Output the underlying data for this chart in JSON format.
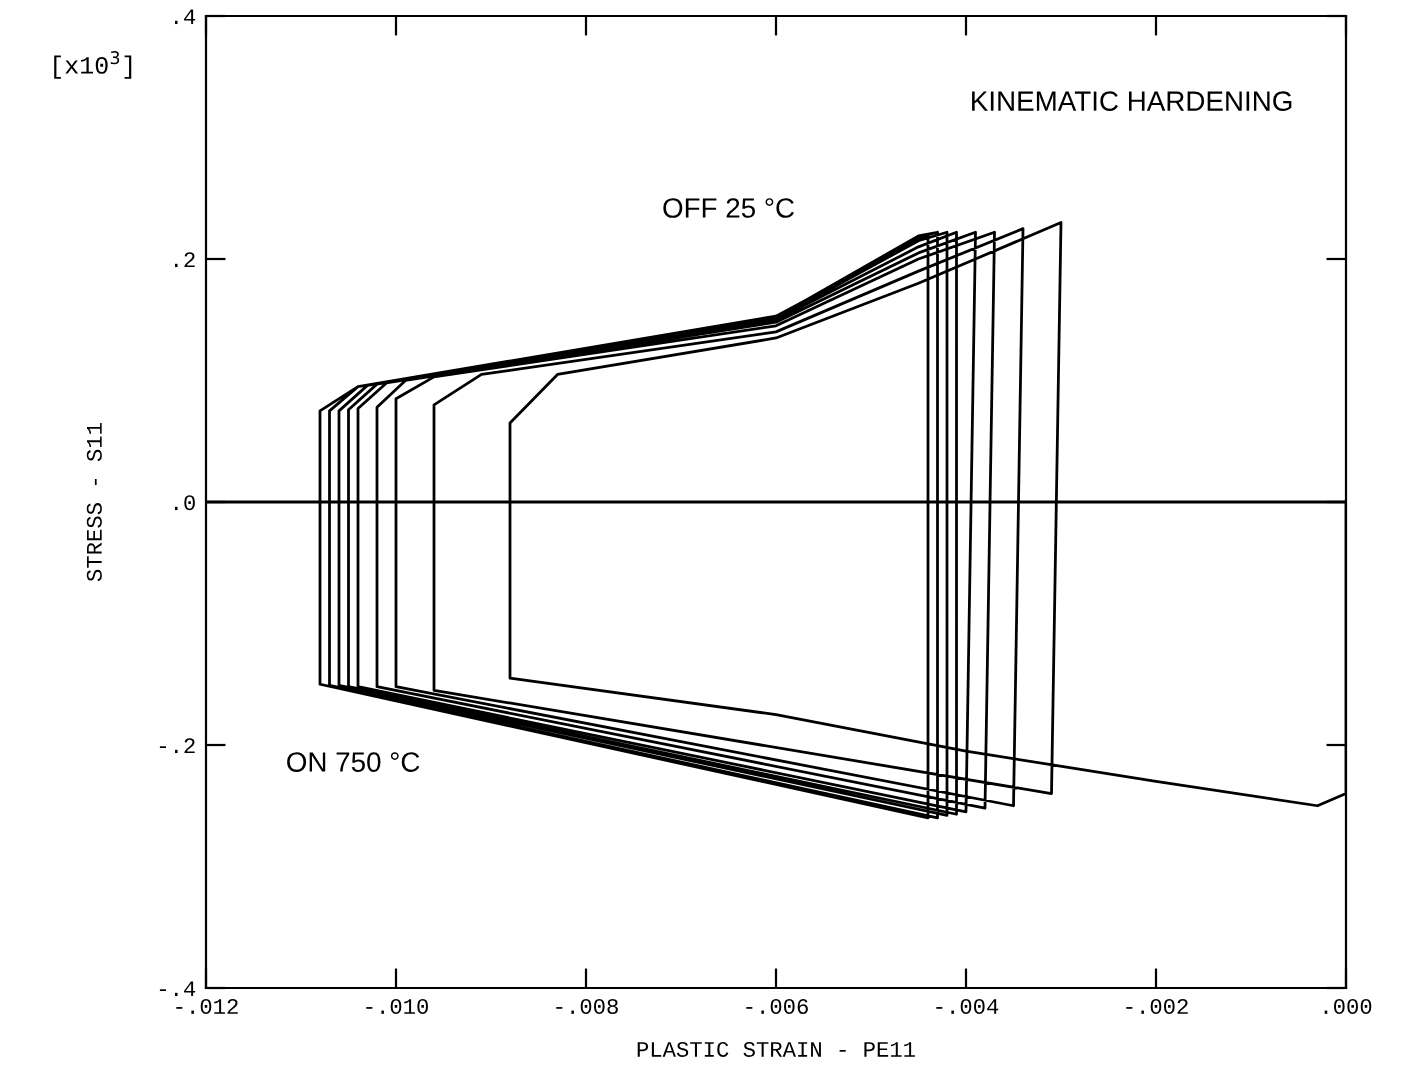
{
  "chart_data": {
    "type": "line",
    "xlabel": "PLASTIC STRAIN - PE11",
    "ylabel": "STRESS - S11",
    "annotations": [
      "[x10$^{3}$]",
      "KINEMATIC HARDENING",
      "OFF 25 °C",
      "ON 750 °C"
    ],
    "xlim": [
      -0.012,
      0.0
    ],
    "ylim": [
      -0.4,
      0.4
    ],
    "xticks": [
      {
        "value": -0.012,
        "label": "-.012"
      },
      {
        "value": -0.01,
        "label": "-.010"
      },
      {
        "value": -0.008,
        "label": "-.008"
      },
      {
        "value": -0.006,
        "label": "-.006"
      },
      {
        "value": -0.004,
        "label": "-.004"
      },
      {
        "value": -0.002,
        "label": "-.002"
      },
      {
        "value": 0.0,
        "label": ".000"
      }
    ],
    "yticks": [
      {
        "value": -0.4,
        "label": "-.4"
      },
      {
        "value": -0.2,
        "label": "-.2"
      },
      {
        "value": 0.0,
        "label": ".0"
      },
      {
        "value": 0.2,
        "label": ".2"
      },
      {
        "value": 0.4,
        "label": ".4"
      }
    ],
    "grid": false,
    "marker": "none",
    "line_style": "solid",
    "ref_lines": [
      {
        "axis": "y",
        "value": 0.0,
        "color": "#000000"
      }
    ],
    "series": [
      {
        "color": "#000000",
        "x": [
          0.0,
          0.0,
          -0.0003,
          -0.002,
          -0.004,
          -0.006,
          -0.0088,
          -0.0088,
          -0.0083,
          -0.006,
          -0.0045,
          -0.003,
          -0.0031,
          -0.0096,
          -0.0096,
          -0.0091,
          -0.006,
          -0.0045,
          -0.0034,
          -0.0035,
          -0.01,
          -0.01,
          -0.0096,
          -0.006,
          -0.0045,
          -0.0037,
          -0.0038,
          -0.0102,
          -0.0102,
          -0.0099,
          -0.006,
          -0.0045,
          -0.0039,
          -0.004,
          -0.0104,
          -0.0104,
          -0.0101,
          -0.006,
          -0.0045,
          -0.0041,
          -0.0041,
          -0.0105,
          -0.0105,
          -0.0102,
          -0.006,
          -0.0045,
          -0.0042,
          -0.0042,
          -0.0106,
          -0.0106,
          -0.0103,
          -0.006,
          -0.0045,
          -0.0043,
          -0.0043,
          -0.0107,
          -0.0107,
          -0.0104,
          -0.006,
          -0.0045,
          -0.0043,
          -0.0043,
          -0.0108,
          -0.0108,
          -0.0104,
          -0.006,
          -0.0044,
          -0.0044,
          -0.0108,
          -0.0108
        ],
        "values": [
          0.0,
          -0.24,
          -0.25,
          -0.23,
          -0.205,
          -0.175,
          -0.145,
          0.065,
          0.105,
          0.135,
          0.18,
          0.23,
          -0.24,
          -0.155,
          0.08,
          0.105,
          0.14,
          0.19,
          0.225,
          -0.25,
          -0.152,
          0.085,
          0.103,
          0.145,
          0.2,
          0.222,
          -0.252,
          -0.152,
          0.078,
          0.1,
          0.148,
          0.205,
          0.222,
          -0.255,
          -0.152,
          0.077,
          0.098,
          0.15,
          0.21,
          0.222,
          -0.257,
          -0.152,
          0.076,
          0.097,
          0.151,
          0.215,
          0.222,
          -0.258,
          -0.151,
          0.075,
          0.096,
          0.152,
          0.218,
          0.222,
          -0.26,
          -0.151,
          0.075,
          0.095,
          0.152,
          0.219,
          0.222,
          -0.26,
          -0.15,
          0.075,
          0.095,
          0.153,
          0.22,
          -0.26,
          -0.15,
          0.07
        ]
      }
    ]
  }
}
